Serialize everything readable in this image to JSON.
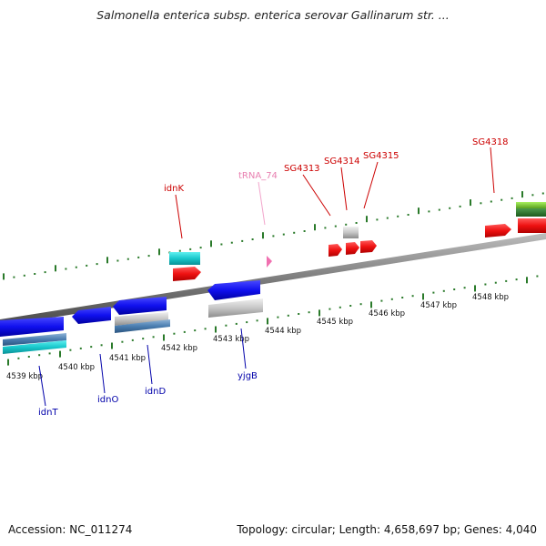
{
  "title": "Salmonella enterica subsp. enterica serovar Gallinarum str. ...",
  "footer": {
    "accession": "Accession: NC_011274",
    "summary": "Topology: circular; Length: 4,658,697 bp; Genes: 4,040"
  },
  "colors": {
    "forward_label": "#cc0000",
    "reverse_label": "#0000aa",
    "trna_label": "#e87fb0",
    "tick": "#2a7a2a",
    "backbone": "#888888"
  },
  "scale": {
    "unit": "kbp",
    "ticks": [
      {
        "kbp": 4539,
        "label": "4539 kbp"
      },
      {
        "kbp": 4540,
        "label": "4540 kbp"
      },
      {
        "kbp": 4541,
        "label": "4541 kbp"
      },
      {
        "kbp": 4542,
        "label": "4542 kbp"
      },
      {
        "kbp": 4543,
        "label": "4543 kbp"
      },
      {
        "kbp": 4544,
        "label": "4544 kbp"
      },
      {
        "kbp": 4545,
        "label": "4545 kbp"
      },
      {
        "kbp": 4546,
        "label": "4546 kbp"
      },
      {
        "kbp": 4547,
        "label": "4547 kbp"
      },
      {
        "kbp": 4548,
        "label": "4548 kbp"
      }
    ]
  },
  "gene_labels": [
    {
      "name": "idnK",
      "strand": "forward"
    },
    {
      "name": "tRNA_74",
      "strand": "trna"
    },
    {
      "name": "SG4313",
      "strand": "forward"
    },
    {
      "name": "SG4314",
      "strand": "forward"
    },
    {
      "name": "SG4315",
      "strand": "forward"
    },
    {
      "name": "SG4318",
      "strand": "forward"
    },
    {
      "name": "idnT",
      "strand": "reverse"
    },
    {
      "name": "idnO",
      "strand": "reverse"
    },
    {
      "name": "idnD",
      "strand": "reverse"
    },
    {
      "name": "yjgB",
      "strand": "reverse"
    }
  ]
}
